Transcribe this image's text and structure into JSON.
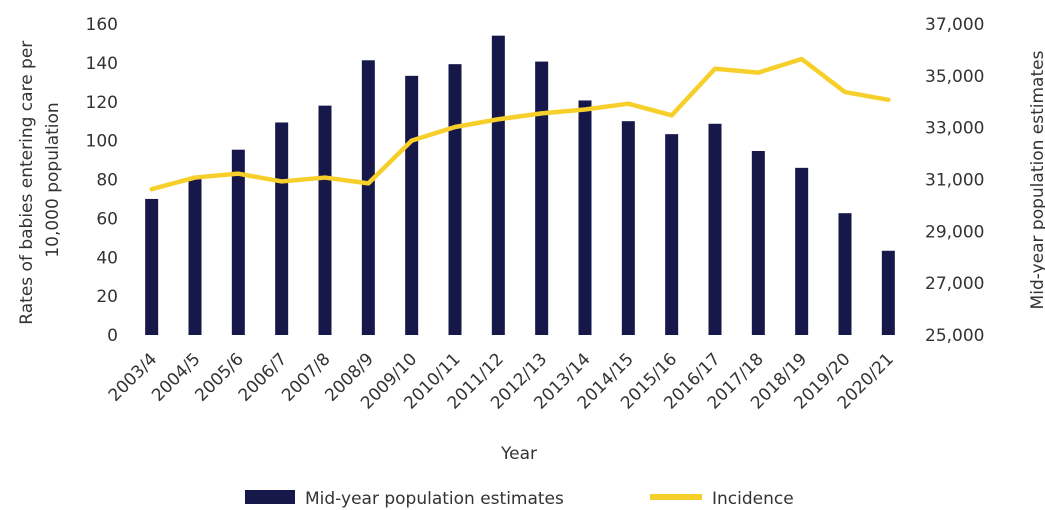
{
  "chart_data": {
    "type": "bar+line",
    "categories": [
      "2003/4",
      "2004/5",
      "2005/6",
      "2006/7",
      "2007/8",
      "2008/9",
      "2009/10",
      "2010/11",
      "2011/12",
      "2012/13",
      "2013/14",
      "2014/15",
      "2015/16",
      "2016/17",
      "2017/18",
      "2018/19",
      "2019/20",
      "2020/21"
    ],
    "series": [
      {
        "name": "Mid-year population estimates",
        "kind": "bar",
        "axis": "right",
        "color": "#16184a",
        "values": [
          30250,
          31050,
          32150,
          33200,
          33850,
          35600,
          35000,
          35450,
          36550,
          35550,
          34050,
          33250,
          32750,
          33150,
          32100,
          31450,
          29700,
          28250
        ]
      },
      {
        "name": "Incidence",
        "kind": "line",
        "axis": "left",
        "color": "#f7cf2a",
        "values": [
          75,
          81,
          83,
          79,
          81,
          78,
          100,
          107,
          111,
          114,
          116,
          119,
          113,
          137,
          135,
          142,
          125,
          121
        ]
      }
    ],
    "xlabel": "Year",
    "ylabel": "Rates of babies entering care per 10,000 population",
    "ylabel_lines": [
      "Rates of babies entering care per",
      "10,000 population"
    ],
    "y2label": "Mid-year population estimates",
    "ylim": [
      0,
      160
    ],
    "yticks": [
      0,
      20,
      40,
      60,
      80,
      100,
      120,
      140,
      160
    ],
    "y2lim": [
      25000,
      37000
    ],
    "y2ticks": [
      25000,
      27000,
      29000,
      31000,
      33000,
      35000,
      37000
    ],
    "y2tick_labels": [
      "25,000",
      "27,000",
      "29,000",
      "31,000",
      "33,000",
      "35,000",
      "37,000"
    ],
    "grid": false,
    "legend_position": "bottom"
  }
}
